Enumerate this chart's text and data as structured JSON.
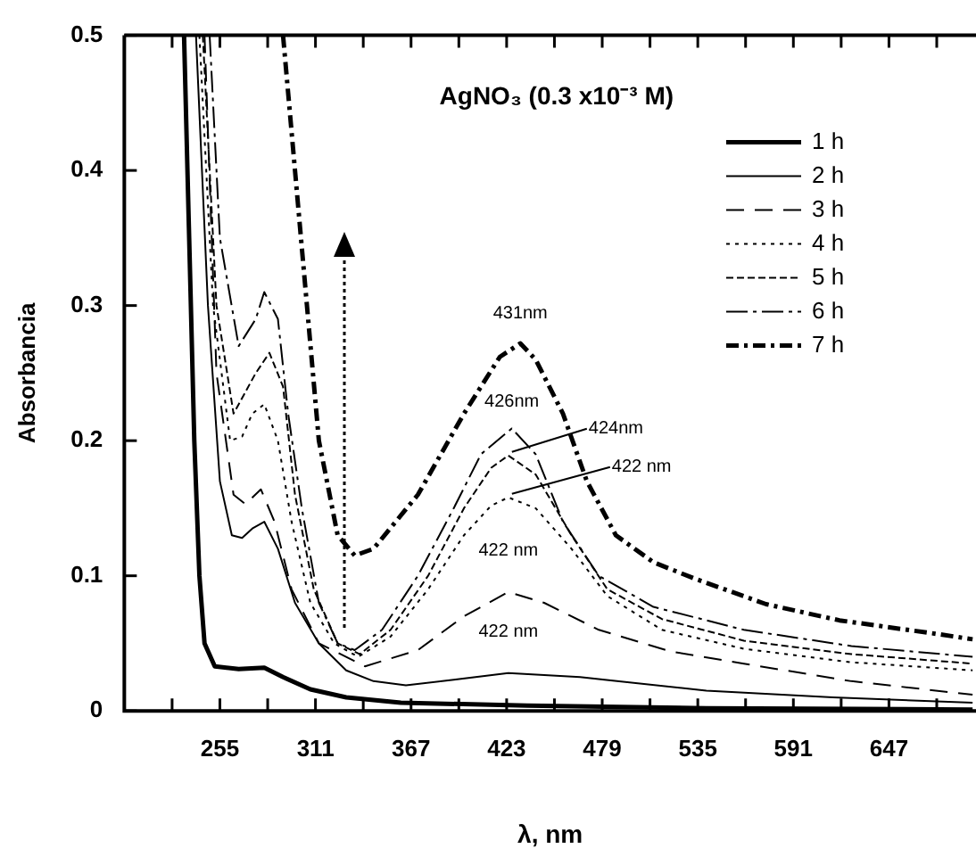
{
  "chart_data": {
    "type": "line",
    "title": "AgNO₃ (0.3 x10⁻³ M)",
    "xlabel": "λ, nm",
    "ylabel": "Absorbancia",
    "xlim": [
      199,
      698
    ],
    "ylim": [
      0,
      0.5
    ],
    "xticks": [
      {
        "value": 227,
        "label": null
      },
      255,
      {
        "value": 283,
        "label": null
      },
      311,
      {
        "value": 339,
        "label": null
      },
      367,
      {
        "value": 395,
        "label": null
      },
      423,
      {
        "value": 451,
        "label": null
      },
      479,
      {
        "value": 507,
        "label": null
      },
      535,
      {
        "value": 563,
        "label": null
      },
      591,
      {
        "value": 619,
        "label": null
      },
      647,
      {
        "value": 675,
        "label": null
      }
    ],
    "yticks": [
      0,
      0.1,
      0.2,
      0.3,
      0.4,
      0.5
    ],
    "grid": false,
    "legend": "top right",
    "marker": "none",
    "series": [
      {
        "name": "1 h",
        "color": "#000000",
        "line_style": "solid",
        "x": [
          234,
          237,
          240,
          243,
          246,
          252,
          266,
          281,
          292,
          308,
          329,
          361,
          435,
          540,
          696
        ],
        "values": [
          0.5,
          0.35,
          0.2,
          0.1,
          0.05,
          0.033,
          0.031,
          0.032,
          0.025,
          0.016,
          0.01,
          0.006,
          0.004,
          0.002,
          0.001
        ]
      },
      {
        "name": "2 h",
        "color": "#000000",
        "line_style": "solid",
        "x": [
          241,
          248,
          255,
          262,
          268,
          274,
          281,
          289,
          299,
          313,
          329,
          345,
          364,
          392,
          424,
          466,
          540,
          614,
          696
        ],
        "values": [
          0.5,
          0.3,
          0.17,
          0.13,
          0.128,
          0.135,
          0.14,
          0.12,
          0.08,
          0.05,
          0.03,
          0.022,
          0.019,
          0.023,
          0.028,
          0.025,
          0.015,
          0.01,
          0.006
        ]
      },
      {
        "name": "3 h",
        "color": "#000000",
        "line_style": "dashed",
        "x": [
          246,
          253,
          263,
          270,
          279,
          287,
          297,
          313,
          340,
          371,
          398,
          424,
          445,
          477,
          519,
          562,
          625,
          696
        ],
        "values": [
          0.5,
          0.25,
          0.16,
          0.153,
          0.164,
          0.14,
          0.09,
          0.05,
          0.033,
          0.045,
          0.07,
          0.088,
          0.08,
          0.06,
          0.044,
          0.035,
          0.022,
          0.012
        ]
      },
      {
        "name": "4 h",
        "color": "#000000",
        "line_style": "dotted",
        "x": [
          243,
          251,
          261,
          268,
          274,
          281,
          289,
          297,
          308,
          322,
          336,
          355,
          377,
          398,
          414,
          424,
          440,
          461,
          482,
          514,
          562,
          625,
          696
        ],
        "values": [
          0.5,
          0.3,
          0.2,
          0.203,
          0.22,
          0.227,
          0.2,
          0.14,
          0.08,
          0.05,
          0.04,
          0.055,
          0.09,
          0.13,
          0.152,
          0.158,
          0.15,
          0.12,
          0.085,
          0.06,
          0.046,
          0.036,
          0.03
        ]
      },
      {
        "name": "5 h",
        "color": "#000000",
        "line_style": "dashed",
        "x": [
          245,
          253,
          263,
          276,
          284,
          292,
          299,
          310,
          324,
          337,
          355,
          377,
          398,
          414,
          424,
          440,
          461,
          482,
          514,
          562,
          625,
          696
        ],
        "values": [
          0.5,
          0.3,
          0.22,
          0.25,
          0.265,
          0.24,
          0.16,
          0.09,
          0.05,
          0.042,
          0.06,
          0.1,
          0.15,
          0.18,
          0.189,
          0.175,
          0.13,
          0.09,
          0.068,
          0.052,
          0.042,
          0.035
        ]
      },
      {
        "name": "6 h",
        "color": "#000000",
        "line_style": "dashed",
        "x": [
          249,
          255,
          266,
          276,
          281,
          289,
          295,
          303,
          313,
          324,
          334,
          350,
          371,
          392,
          408,
          426,
          440,
          456,
          477,
          509,
          562,
          625,
          696
        ],
        "values": [
          0.5,
          0.35,
          0.27,
          0.29,
          0.31,
          0.29,
          0.22,
          0.15,
          0.08,
          0.05,
          0.045,
          0.06,
          0.1,
          0.15,
          0.19,
          0.209,
          0.19,
          0.14,
          0.1,
          0.077,
          0.06,
          0.048,
          0.04
        ]
      },
      {
        "name": "7 h",
        "color": "#000000",
        "line_style": "dashed",
        "x": [
          292,
          299,
          306,
          313,
          324,
          334,
          345,
          371,
          398,
          419,
          431,
          440,
          456,
          470,
          487,
          509,
          533,
          575,
          618,
          675,
          696
        ],
        "values": [
          0.5,
          0.4,
          0.3,
          0.2,
          0.13,
          0.115,
          0.12,
          0.16,
          0.22,
          0.262,
          0.272,
          0.26,
          0.22,
          0.17,
          0.13,
          0.11,
          0.098,
          0.079,
          0.067,
          0.057,
          0.053
        ]
      }
    ],
    "annotations": [
      {
        "text": "431nm",
        "x": 431,
        "y": 0.272
      },
      {
        "text": "426nm",
        "x": 426,
        "y": 0.209
      },
      {
        "text": "424nm",
        "x": 424,
        "y": 0.189
      },
      {
        "text": "422 nm",
        "x": 424,
        "y": 0.158
      },
      {
        "text": "422 nm",
        "x": 424,
        "y": 0.088
      },
      {
        "text": "422 nm",
        "x": 424,
        "y": 0.028
      }
    ]
  }
}
